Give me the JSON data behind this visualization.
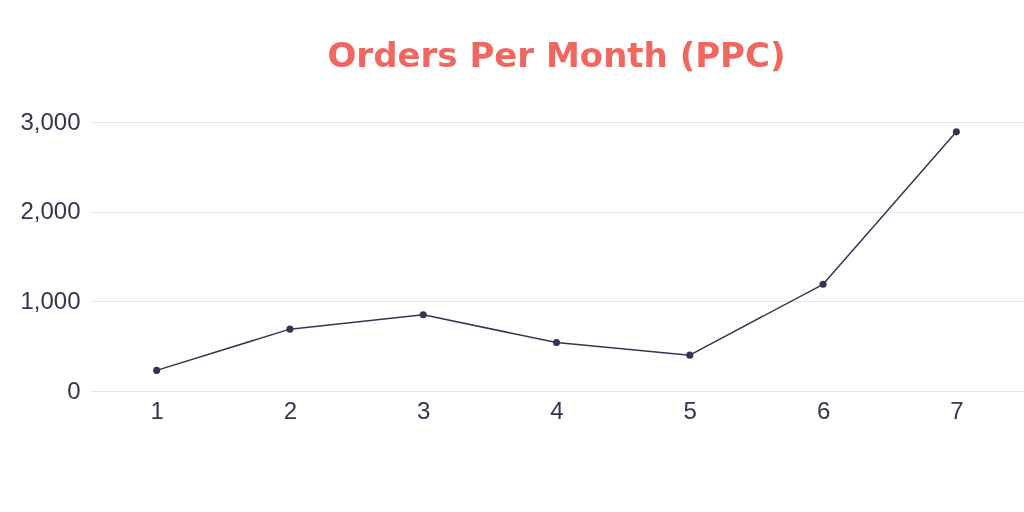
{
  "chart_data": {
    "type": "line",
    "title": "Orders Per Month (PPC)",
    "categories": [
      "1",
      "2",
      "3",
      "4",
      "5",
      "6",
      "7"
    ],
    "series": [
      {
        "color": "#3a3250",
        "values": [
          230,
          690,
          850,
          540,
          400,
          1190,
          2890
        ]
      }
    ],
    "ylim": [
      0,
      3000
    ],
    "yticks": [
      0,
      {
        "value": 1000,
        "label": "1,000"
      },
      {
        "value": 2000,
        "label": "2,000"
      },
      {
        "value": 3000,
        "label": "3,000"
      }
    ],
    "grid": "y",
    "marker": "circle",
    "line_style": "solid"
  }
}
